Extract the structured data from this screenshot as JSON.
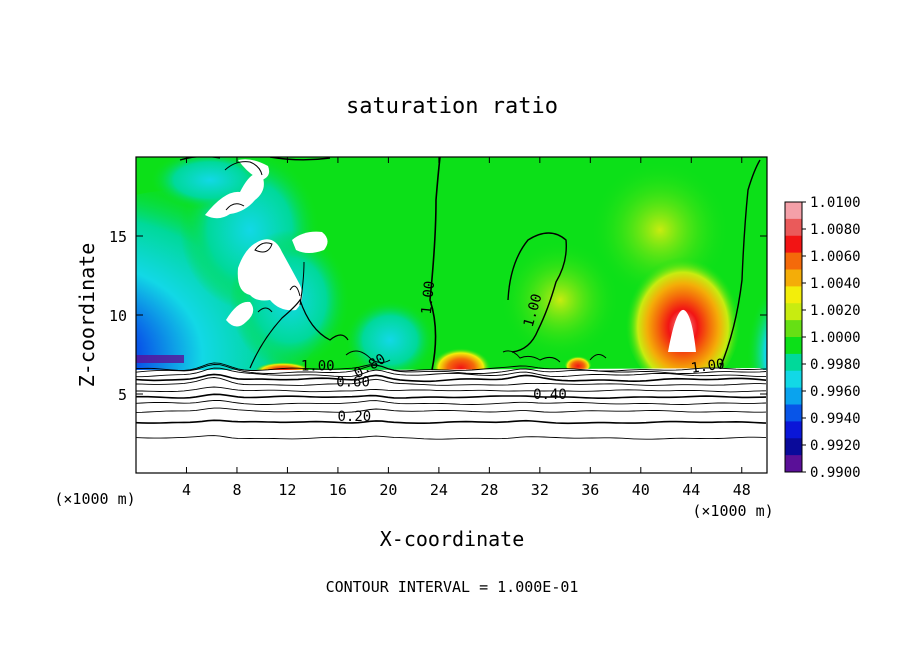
{
  "chart_data": {
    "type": "heatmap",
    "title": "saturation ratio",
    "xlabel": "X-coordinate",
    "ylabel": "Z-coordinate",
    "x_unit_left": "(×1000 m)",
    "x_unit_right": "(×1000 m)",
    "footer": "CONTOUR INTERVAL = 1.000E-01",
    "xlim": [
      0,
      50
    ],
    "ylim": [
      0,
      20
    ],
    "x_ticks": [
      4,
      8,
      12,
      16,
      20,
      24,
      28,
      32,
      36,
      40,
      44,
      48
    ],
    "x_tick_labels": [
      "4",
      "8",
      "12",
      "16",
      "20",
      "24",
      "28",
      "32",
      "36",
      "40",
      "44",
      "48"
    ],
    "y_ticks": [
      5,
      10,
      15
    ],
    "y_tick_labels": [
      "5",
      "10",
      "15"
    ],
    "colorbar": {
      "levels": [
        "1.0100",
        "1.0080",
        "1.0060",
        "1.0040",
        "1.0020",
        "1.0000",
        "0.9980",
        "0.9960",
        "0.9940",
        "0.9920",
        "0.9900"
      ],
      "colors": [
        "#f4a0a8",
        "#ea5a5a",
        "#f21414",
        "#f46a0a",
        "#f4ad08",
        "#f3ee0a",
        "#c8ec10",
        "#66e014",
        "#0ce018",
        "#00d99a",
        "#12d8e6",
        "#0aa3ee",
        "#0855e8",
        "#0a16d8",
        "#0a0a9a",
        "#5a1098"
      ]
    },
    "contour_labels": [
      {
        "text": "1.00",
        "x": 23.1,
        "z": 11.1,
        "rotate": -84
      },
      {
        "text": "1.00",
        "x": 31.4,
        "z": 10.3,
        "rotate": -74
      },
      {
        "text": "1.00",
        "x": 14.4,
        "z": 6.8,
        "rotate": 0
      },
      {
        "text": "1.00",
        "x": 45.3,
        "z": 6.8,
        "rotate": -8
      },
      {
        "text": "0.80",
        "x": 18.5,
        "z": 6.8,
        "rotate": -30
      },
      {
        "text": "0.60",
        "x": 17.2,
        "z": 5.8,
        "rotate": 0
      },
      {
        "text": "0.40",
        "x": 32.8,
        "z": 5.0,
        "rotate": 0
      },
      {
        "text": "0.20",
        "x": 17.3,
        "z": 3.6,
        "rotate": 0
      }
    ],
    "low_level_contours_z": [
      2.2,
      3.2,
      3.9,
      4.4,
      4.8,
      5.2,
      5.6,
      5.9,
      6.2,
      6.4,
      6.55
    ]
  }
}
